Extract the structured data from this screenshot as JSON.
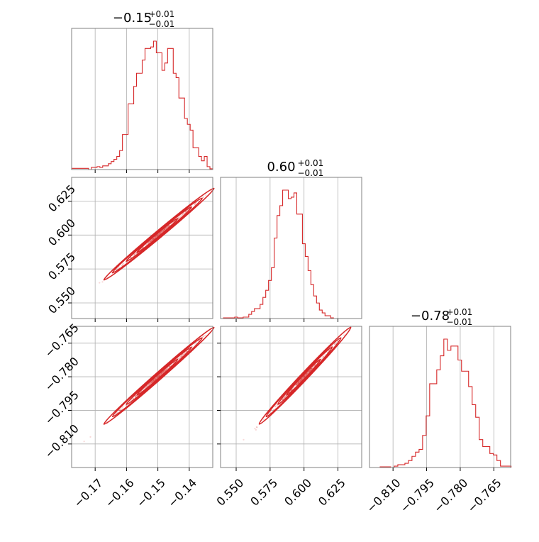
{
  "chart_data": {
    "type": "corner",
    "colors": {
      "series": "#d62728",
      "axes_frame": "#808080",
      "grid": "#b0b0b0"
    },
    "grid": true,
    "parameters": [
      {
        "title": {
          "main": "−0.15",
          "sup": "+0.01",
          "sub": "−0.01"
        },
        "range": [
          -0.1775,
          -0.1325
        ],
        "ticks": [
          -0.17,
          -0.16,
          -0.15,
          -0.14
        ],
        "tick_labels": [
          "−0.17",
          "−0.16",
          "−0.15",
          "−0.14"
        ]
      },
      {
        "title": {
          "main": "0.60",
          "sup": "+0.01",
          "sub": "−0.01"
        },
        "range": [
          0.5385,
          0.6425
        ],
        "ticks": [
          0.55,
          0.575,
          0.6,
          0.625
        ],
        "tick_labels": [
          "0.550",
          "0.575",
          "0.600",
          "0.625"
        ]
      },
      {
        "title": {
          "main": "−0.78",
          "sup": "+0.01",
          "sub": "−0.01"
        },
        "range": [
          -0.8205,
          -0.7575
        ],
        "ticks": [
          -0.81,
          -0.795,
          -0.78,
          -0.765
        ],
        "tick_labels": [
          "−0.810",
          "−0.795",
          "−0.780",
          "−0.765"
        ]
      }
    ],
    "histograms": [
      {
        "param": 0,
        "bin_edges_start": -0.1775,
        "bin_width": 0.0009,
        "counts": [
          0.8,
          0.8,
          0.8,
          0.8,
          0.8,
          0.8,
          0,
          1.5,
          1.5,
          2.0,
          1.5,
          2.5,
          2.5,
          4,
          5.5,
          7,
          9,
          13,
          24,
          24,
          45,
          45,
          57,
          66,
          66,
          75,
          83,
          83,
          84,
          88,
          80,
          80,
          68,
          73,
          83,
          83,
          66,
          63,
          49,
          49,
          35,
          31,
          27,
          15,
          15,
          9,
          6,
          9,
          2,
          0.5
        ]
      },
      {
        "param": 1,
        "bin_edges_start": 0.5385,
        "bin_width": 0.00208,
        "counts": [
          0,
          0.5,
          0.5,
          0.5,
          0.5,
          1,
          0.5,
          0.5,
          1,
          1,
          3,
          5,
          7,
          7,
          10,
          15,
          20,
          27,
          36,
          57,
          73,
          80,
          91,
          91,
          85,
          86,
          89,
          74,
          74,
          53,
          44,
          34,
          24,
          16,
          11,
          6,
          4,
          2,
          2,
          0.5
        ]
      },
      {
        "param": 2,
        "bin_edges_start": -0.8205,
        "bin_width": 0.00158,
        "counts": [
          0,
          0,
          0,
          0.5,
          0.5,
          0.5,
          0,
          1,
          2,
          2,
          3,
          5,
          8,
          11,
          13,
          23,
          37,
          60,
          60,
          70,
          80,
          92,
          84,
          87,
          87,
          77,
          69,
          69,
          58,
          45,
          36,
          20,
          15,
          15,
          10,
          9,
          5,
          1,
          1,
          1
        ]
      }
    ],
    "scatter_pairs": [
      {
        "x_param": 0,
        "y_param": 1,
        "core": {
          "slope": -0.0002,
          "sigma": 0.008
        }
      },
      {
        "x_param": 0,
        "y_param": 2,
        "core": {
          "slope": 0.0001,
          "sigma": 0.007
        }
      },
      {
        "x_param": 1,
        "y_param": 2,
        "core": {
          "slope": 0.0002,
          "sigma": 0.008
        }
      }
    ]
  }
}
